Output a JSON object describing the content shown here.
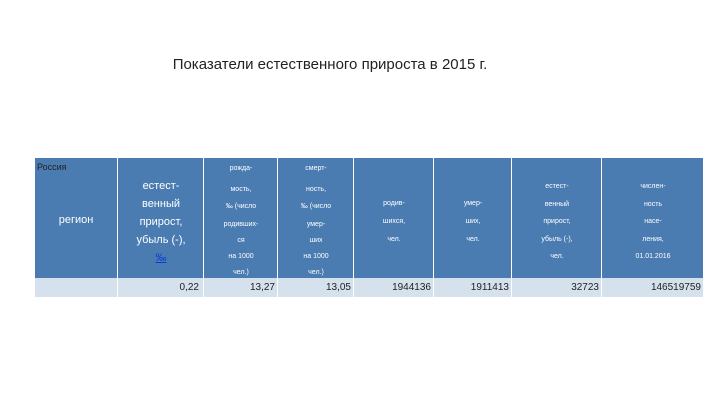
{
  "title": "Показатели естественного прироста в 2015 г.",
  "headers": {
    "region": "регион",
    "natural_increase": [
      "естест-",
      "венный",
      "прирост,",
      "убыль (-),"
    ],
    "natural_increase_unit": "‰",
    "birth_rate": [
      "рожда-",
      "мость,",
      "‰ (число",
      "родивших-",
      "ся",
      "на 1000",
      "чел.)"
    ],
    "death_rate": [
      "смерт-",
      "ность,",
      "‰ (число",
      "умер-",
      "ших",
      "на 1000",
      "чел.)"
    ],
    "births": [
      "родив-",
      "шихся,",
      "чел."
    ],
    "deaths": [
      "умер-",
      "ших,",
      "чел."
    ],
    "natural_increase_abs": [
      "естест-",
      "венный",
      "прирост,",
      "убыль (-),",
      "чел."
    ],
    "population": [
      "числен-",
      "ность",
      "насе-",
      "ления,",
      "01.01.2016"
    ]
  },
  "rows": [
    {
      "region": "Россия",
      "natural_increase": "0,22",
      "birth_rate": "13,27",
      "death_rate": "13,05",
      "births": "1944136",
      "deaths": "1911413",
      "natural_increase_abs": "32723",
      "population": "146519759"
    }
  ],
  "colors": {
    "header_bg": "#4a7cb1",
    "row_bg": "#d6e1ee",
    "link": "#0b3bd6"
  }
}
